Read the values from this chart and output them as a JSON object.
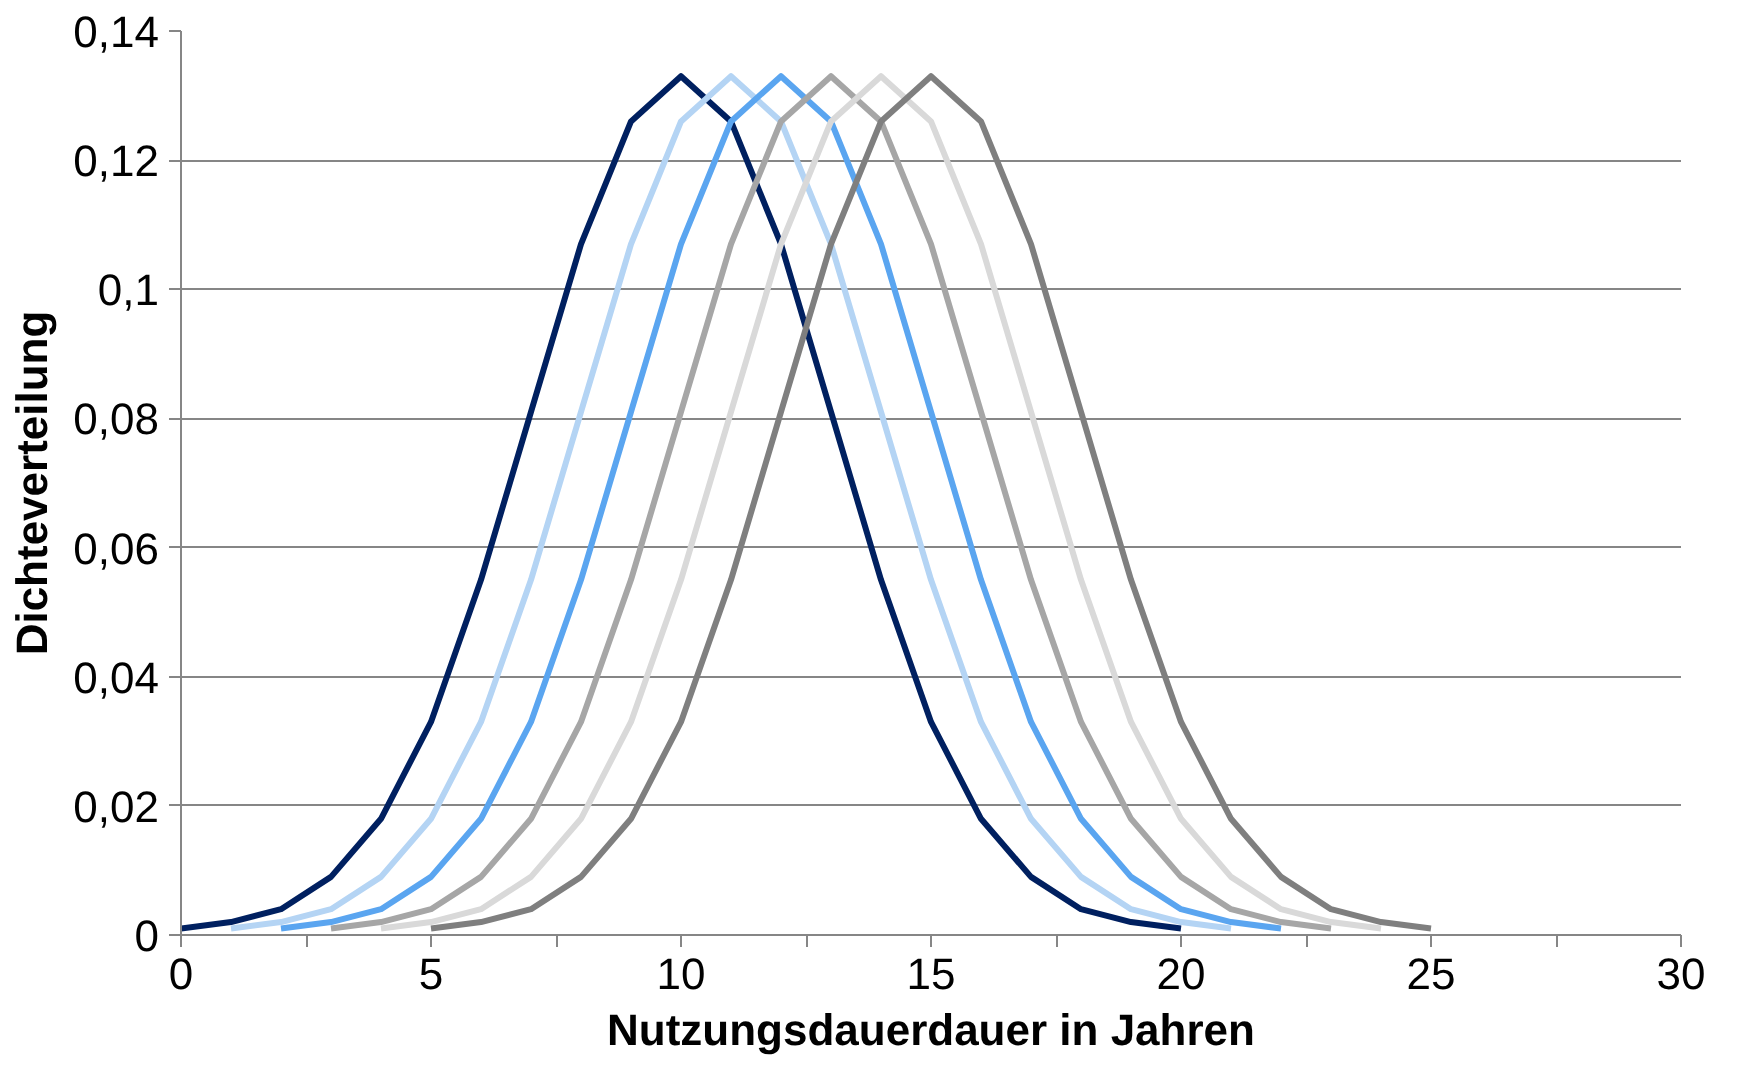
{
  "chart_data": {
    "type": "line",
    "xlabel": "Nutzungsdauerdauer in Jahren",
    "ylabel": "Dichteverteilung",
    "series": [
      {
        "color": "#002060",
        "x": [
          0,
          1,
          2,
          3,
          4,
          5,
          6,
          7,
          8,
          9,
          10,
          11,
          12,
          13,
          14,
          15,
          16,
          17,
          18,
          19,
          20
        ],
        "values": [
          0.001,
          0.002,
          0.004,
          0.009,
          0.018,
          0.033,
          0.055,
          0.081,
          0.107,
          0.126,
          0.133,
          0.126,
          0.107,
          0.081,
          0.055,
          0.033,
          0.018,
          0.009,
          0.004,
          0.002,
          0.001
        ]
      },
      {
        "color": "#b4d4f4",
        "x": [
          1,
          2,
          3,
          4,
          5,
          6,
          7,
          8,
          9,
          10,
          11,
          12,
          13,
          14,
          15,
          16,
          17,
          18,
          19,
          20,
          21
        ],
        "values": [
          0.001,
          0.002,
          0.004,
          0.009,
          0.018,
          0.033,
          0.055,
          0.081,
          0.107,
          0.126,
          0.133,
          0.126,
          0.107,
          0.081,
          0.055,
          0.033,
          0.018,
          0.009,
          0.004,
          0.002,
          0.001
        ]
      },
      {
        "color": "#5aa5f0",
        "x": [
          2,
          3,
          4,
          5,
          6,
          7,
          8,
          9,
          10,
          11,
          12,
          13,
          14,
          15,
          16,
          17,
          18,
          19,
          20,
          21,
          22
        ],
        "values": [
          0.001,
          0.002,
          0.004,
          0.009,
          0.018,
          0.033,
          0.055,
          0.081,
          0.107,
          0.126,
          0.133,
          0.126,
          0.107,
          0.081,
          0.055,
          0.033,
          0.018,
          0.009,
          0.004,
          0.002,
          0.001
        ]
      },
      {
        "color": "#a6a6a6",
        "x": [
          3,
          4,
          5,
          6,
          7,
          8,
          9,
          10,
          11,
          12,
          13,
          14,
          15,
          16,
          17,
          18,
          19,
          20,
          21,
          22,
          23
        ],
        "values": [
          0.001,
          0.002,
          0.004,
          0.009,
          0.018,
          0.033,
          0.055,
          0.081,
          0.107,
          0.126,
          0.133,
          0.126,
          0.107,
          0.081,
          0.055,
          0.033,
          0.018,
          0.009,
          0.004,
          0.002,
          0.001
        ]
      },
      {
        "color": "#d9d9d9",
        "x": [
          4,
          5,
          6,
          7,
          8,
          9,
          10,
          11,
          12,
          13,
          14,
          15,
          16,
          17,
          18,
          19,
          20,
          21,
          22,
          23,
          24
        ],
        "values": [
          0.001,
          0.002,
          0.004,
          0.009,
          0.018,
          0.033,
          0.055,
          0.081,
          0.107,
          0.126,
          0.133,
          0.126,
          0.107,
          0.081,
          0.055,
          0.033,
          0.018,
          0.009,
          0.004,
          0.002,
          0.001
        ]
      },
      {
        "color": "#7f7f7f",
        "x": [
          5,
          6,
          7,
          8,
          9,
          10,
          11,
          12,
          13,
          14,
          15,
          16,
          17,
          18,
          19,
          20,
          21,
          22,
          23,
          24,
          25
        ],
        "values": [
          0.001,
          0.002,
          0.004,
          0.009,
          0.018,
          0.033,
          0.055,
          0.081,
          0.107,
          0.126,
          0.133,
          0.126,
          0.107,
          0.081,
          0.055,
          0.033,
          0.018,
          0.009,
          0.004,
          0.002,
          0.001
        ]
      }
    ],
    "xlim": [
      0,
      30
    ],
    "ylim": [
      0,
      0.14
    ],
    "xticks": [
      0,
      {
        "value": 2.5,
        "label": null
      },
      5,
      {
        "value": 7.5,
        "label": null
      },
      10,
      {
        "value": 12.5,
        "label": null
      },
      15,
      {
        "value": 17.5,
        "label": null
      },
      20,
      {
        "value": 22.5,
        "label": null
      },
      25,
      {
        "value": 27.5,
        "label": null
      },
      30
    ],
    "yticks": [
      0,
      {
        "value": 0.02,
        "label": "0,02"
      },
      {
        "value": 0.04,
        "label": "0,04"
      },
      {
        "value": 0.06,
        "label": "0,06"
      },
      {
        "value": 0.08,
        "label": "0,08"
      },
      {
        "value": 0.1,
        "label": "0,1"
      },
      {
        "value": 0.12,
        "label": "0,12"
      },
      {
        "value": 0.14,
        "label": "0,14"
      }
    ],
    "grid": "y",
    "marker": "none",
    "line_style": "solid"
  }
}
